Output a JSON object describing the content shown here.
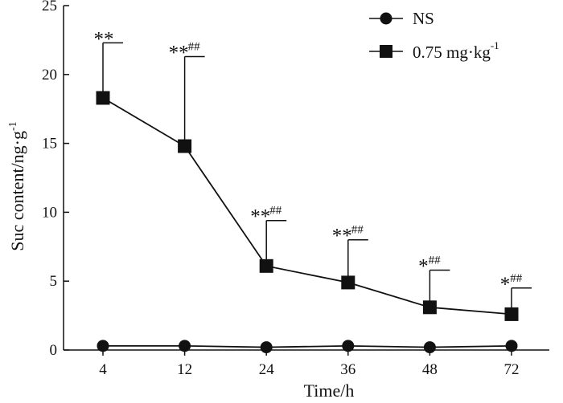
{
  "chart_data": {
    "type": "line",
    "xlabel": "Time/h",
    "ylabel": "Suc content/ng·g",
    "ylabel_sup": "-1",
    "categories": [
      "4",
      "12",
      "24",
      "36",
      "48",
      "72"
    ],
    "ylim": [
      0,
      25
    ],
    "yticks": [
      "0",
      "5",
      "10",
      "15",
      "20",
      "25"
    ],
    "grid": false,
    "legend_position": "top-right",
    "series": [
      {
        "name": "NS",
        "marker": "circle",
        "values": [
          0.3,
          0.3,
          0.2,
          0.3,
          0.2,
          0.3
        ],
        "errors": [
          0,
          0,
          0,
          0,
          0,
          0
        ]
      },
      {
        "name": "0.75 mg·kg",
        "name_sup": "-1",
        "marker": "square",
        "values": [
          18.3,
          14.8,
          6.1,
          4.9,
          3.1,
          2.6
        ],
        "errors": [
          4.0,
          6.5,
          3.3,
          3.1,
          2.7,
          1.9
        ]
      }
    ],
    "annotations": [
      {
        "stars": "**",
        "hashes": ""
      },
      {
        "stars": "**",
        "hashes": "##"
      },
      {
        "stars": "**",
        "hashes": "##"
      },
      {
        "stars": "**",
        "hashes": "##"
      },
      {
        "stars": "*",
        "hashes": "##"
      },
      {
        "stars": "*",
        "hashes": "##"
      }
    ]
  }
}
